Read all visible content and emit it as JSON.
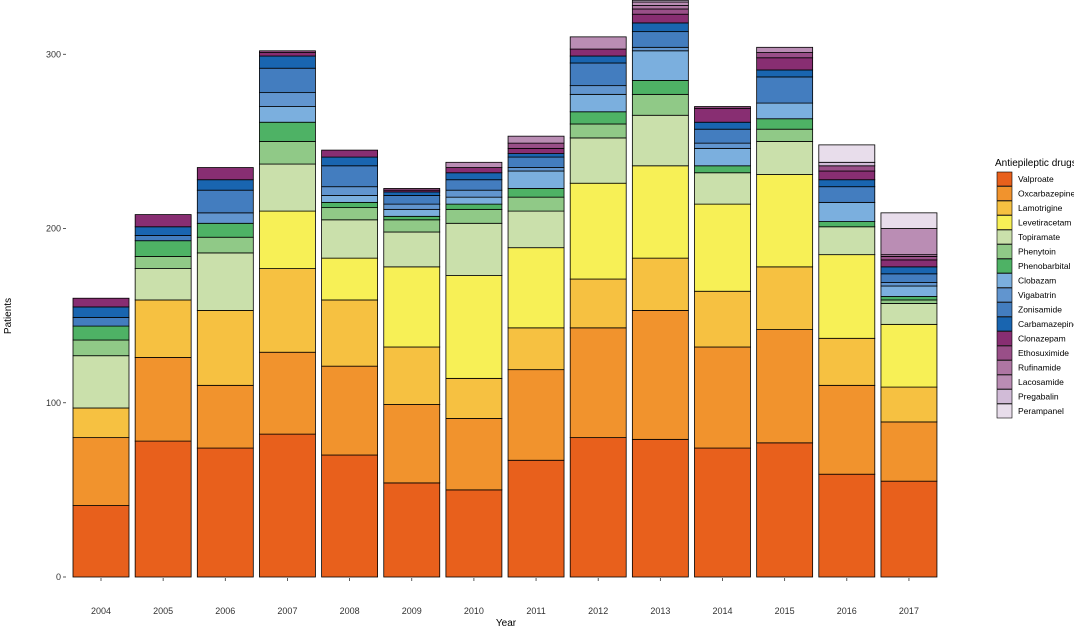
{
  "chart_data": {
    "type": "bar",
    "stacked": true,
    "title": "",
    "xlabel": "Year",
    "ylabel": "Patients",
    "ylim": [
      0,
      330
    ],
    "yticks": [
      0,
      100,
      200,
      300
    ],
    "grid": false,
    "legend_position": "right",
    "legend_title": "Antiepileptic drugs",
    "categories": [
      "2004",
      "2005",
      "2006",
      "2007",
      "2008",
      "2009",
      "2010",
      "2011",
      "2012",
      "2013",
      "2014",
      "2015",
      "2016",
      "2017"
    ],
    "series": [
      {
        "name": "Valproate",
        "color": "#E8601C",
        "values": [
          41,
          78,
          74,
          82,
          70,
          54,
          50,
          67,
          80,
          79,
          74,
          77,
          59,
          55
        ]
      },
      {
        "name": "Oxcarbazepine",
        "color": "#F1932D",
        "values": [
          39,
          48,
          36,
          47,
          51,
          45,
          41,
          52,
          63,
          74,
          58,
          65,
          51,
          34
        ]
      },
      {
        "name": "Lamotrigine",
        "color": "#F6C141",
        "values": [
          17,
          33,
          43,
          48,
          38,
          33,
          23,
          24,
          28,
          30,
          32,
          36,
          27,
          20
        ]
      },
      {
        "name": "Levetiracetam",
        "color": "#F7F056",
        "values": [
          0,
          0,
          0,
          33,
          24,
          46,
          59,
          46,
          55,
          53,
          50,
          53,
          48,
          36
        ]
      },
      {
        "name": "Topiramate",
        "color": "#CAE0AB",
        "values": [
          30,
          18,
          33,
          27,
          22,
          20,
          30,
          21,
          26,
          29,
          18,
          19,
          16,
          12
        ]
      },
      {
        "name": "Phenytoin",
        "color": "#90C987",
        "values": [
          9,
          7,
          9,
          13,
          7,
          7,
          8,
          8,
          8,
          12,
          0,
          7,
          0,
          2
        ]
      },
      {
        "name": "Phenobarbital",
        "color": "#4EB265",
        "values": [
          8,
          9,
          8,
          11,
          3,
          2,
          3,
          5,
          7,
          8,
          4,
          6,
          3,
          2
        ]
      },
      {
        "name": "Clobazam",
        "color": "#7BAFDE",
        "values": [
          0,
          0,
          0,
          9,
          4,
          4,
          4,
          10,
          10,
          17,
          10,
          9,
          11,
          6
        ]
      },
      {
        "name": "Vigabatrin",
        "color": "#6195CF",
        "values": [
          0,
          0,
          6,
          8,
          5,
          3,
          4,
          2,
          5,
          2,
          3,
          0,
          0,
          2
        ]
      },
      {
        "name": "Zonisamide",
        "color": "#437DBF",
        "values": [
          5,
          3,
          13,
          14,
          12,
          5,
          6,
          6,
          13,
          9,
          8,
          15,
          9,
          5
        ]
      },
      {
        "name": "Carbamazepine",
        "color": "#1965B0",
        "values": [
          6,
          5,
          6,
          7,
          5,
          2,
          4,
          2,
          4,
          5,
          4,
          4,
          4,
          4
        ]
      },
      {
        "name": "Clonazepam",
        "color": "#882E72",
        "values": [
          5,
          7,
          7,
          2,
          4,
          1,
          3,
          3,
          4,
          5,
          8,
          7,
          5,
          4
        ]
      },
      {
        "name": "Ethosuximide",
        "color": "#994F88",
        "values": [
          0,
          0,
          0,
          1,
          0,
          1,
          0,
          3,
          0,
          3,
          1,
          3,
          3,
          2
        ]
      },
      {
        "name": "Rufinamide",
        "color": "#AE76A3",
        "values": [
          0,
          0,
          0,
          0,
          0,
          0,
          0,
          0,
          0,
          2,
          0,
          0,
          0,
          1
        ]
      },
      {
        "name": "Lacosamide",
        "color": "#BA8DB4",
        "values": [
          0,
          0,
          0,
          0,
          0,
          0,
          3,
          4,
          7,
          2,
          0,
          3,
          0,
          15
        ]
      },
      {
        "name": "Pregabalin",
        "color": "#D1BBD7",
        "values": [
          0,
          0,
          0,
          0,
          0,
          0,
          0,
          0,
          0,
          1,
          0,
          0,
          2,
          0
        ]
      },
      {
        "name": "Perampanel",
        "color": "#E8DDEB",
        "values": [
          0,
          0,
          0,
          0,
          0,
          0,
          0,
          0,
          0,
          0,
          0,
          0,
          10,
          9
        ]
      }
    ]
  }
}
